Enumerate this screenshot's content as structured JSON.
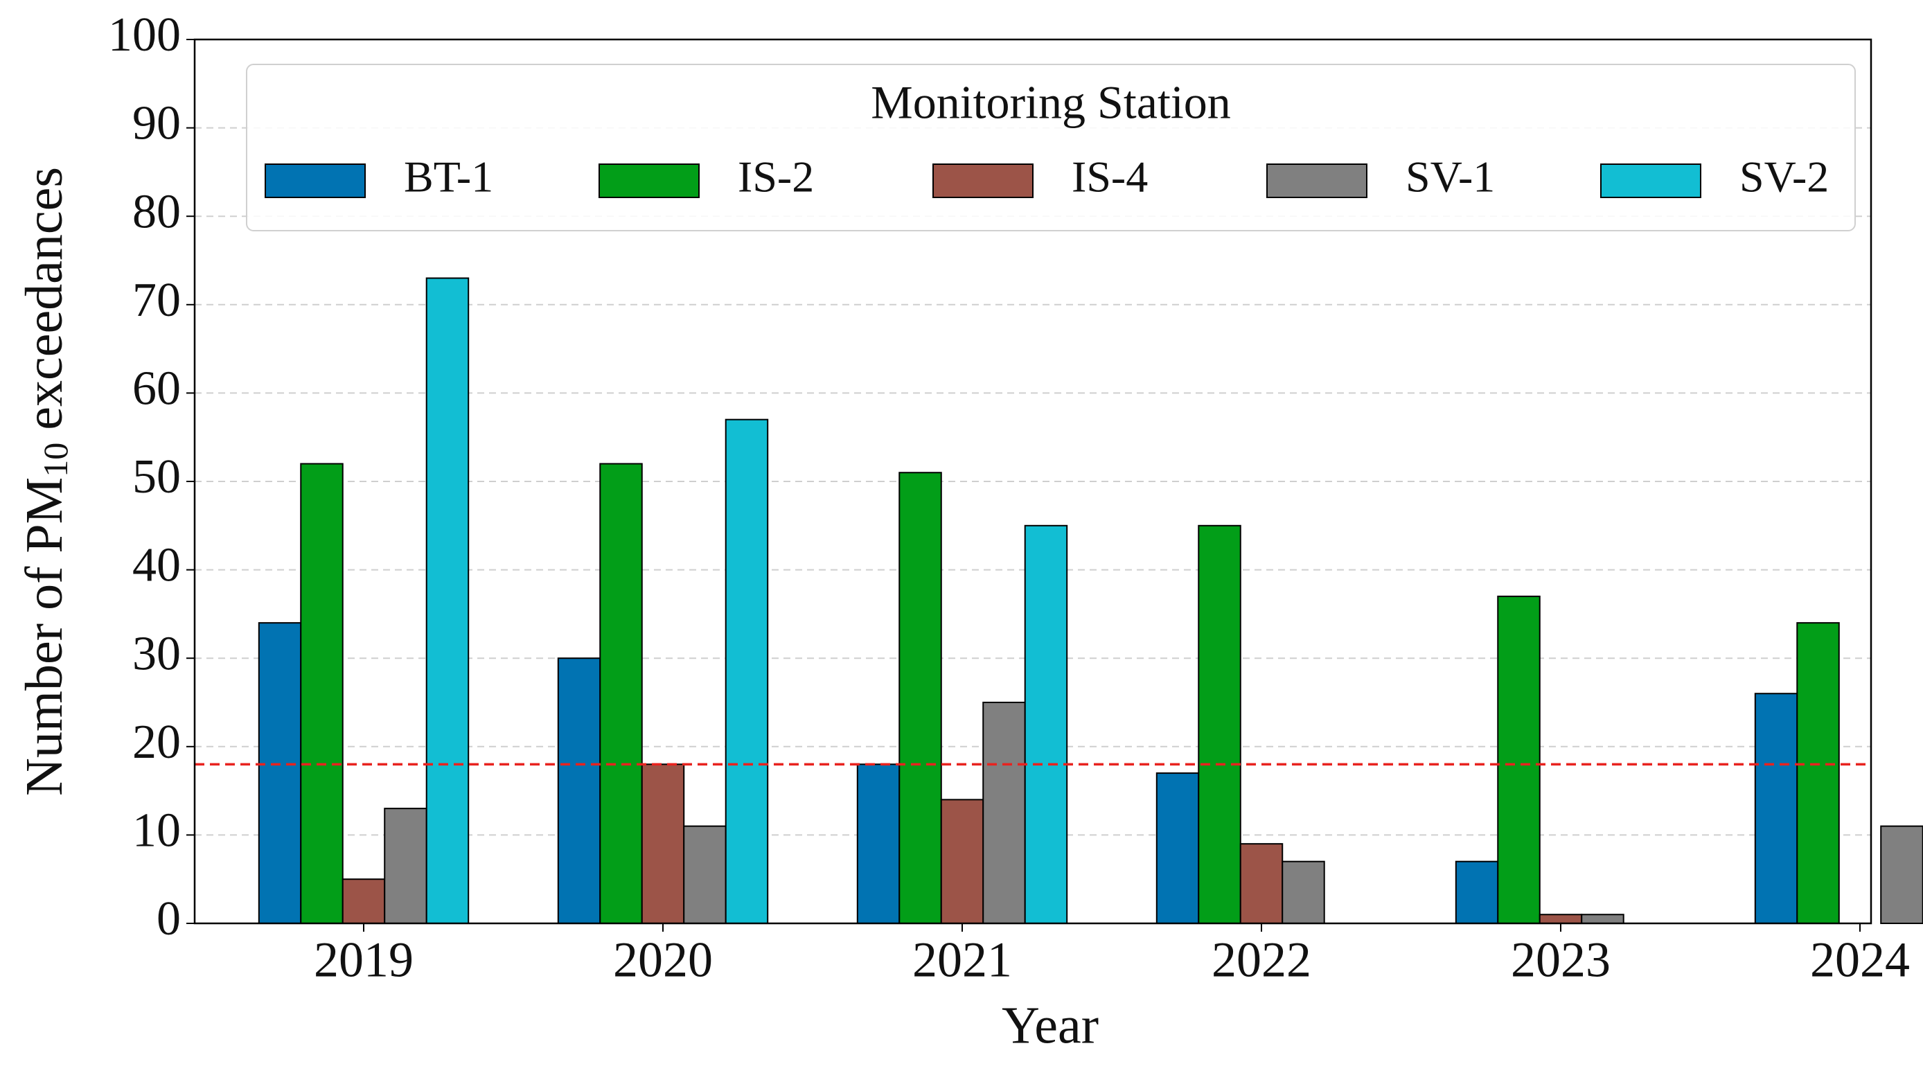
{
  "chart_data": {
    "type": "bar",
    "xlabel": "Year",
    "ylabel_parts": [
      "Number of PM",
      "10",
      "exceedances"
    ],
    "legend_title": "Monitoring Station",
    "legend_position": "top",
    "categories": [
      "2019",
      "2020",
      "2021",
      "2022",
      "2023",
      "2024"
    ],
    "series": [
      {
        "name": "BT-1",
        "color": "#0173b2",
        "values": [
          34,
          30,
          18,
          17,
          7,
          26
        ]
      },
      {
        "name": "IS-2",
        "color": "#029e18",
        "values": [
          52,
          52,
          51,
          45,
          37,
          34
        ]
      },
      {
        "name": "IS-4",
        "color": "#9c5448",
        "values": [
          5,
          18,
          14,
          9,
          1,
          0
        ]
      },
      {
        "name": "SV-1",
        "color": "#808080",
        "values": [
          13,
          11,
          25,
          7,
          1,
          11
        ]
      },
      {
        "name": "SV-2",
        "color": "#12bed3",
        "values": [
          73,
          57,
          45,
          0,
          0,
          0
        ]
      }
    ],
    "reference_line": {
      "value": 18,
      "color": "#e8231f"
    },
    "ylim": [
      0,
      100
    ],
    "yticks": [
      0,
      10,
      20,
      30,
      40,
      50,
      60,
      70,
      80,
      90,
      100
    ],
    "grid": true
  }
}
